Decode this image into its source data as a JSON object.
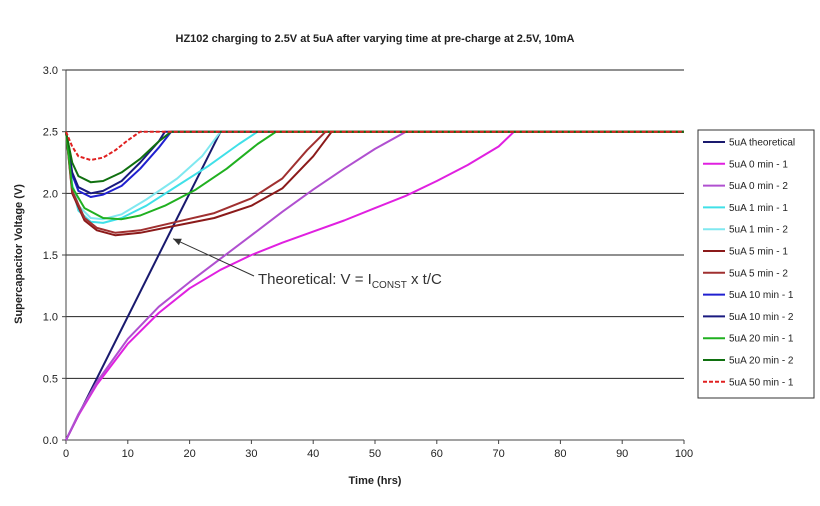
{
  "chart_data": {
    "type": "line",
    "title": "HZ102 charging to 2.5V at 5uA after varying time at pre-charge at 2.5V, 10mA",
    "xlabel": "Time (hrs)",
    "ylabel": "Supercapacitor Voltage (V)",
    "xlim": [
      0,
      100
    ],
    "ylim": [
      0,
      3.0
    ],
    "xticks": [
      "0",
      "10",
      "20",
      "30",
      "40",
      "50",
      "60",
      "70",
      "80",
      "90",
      "100"
    ],
    "yticks": [
      "0.0",
      "0.5",
      "1.0",
      "1.5",
      "2.0",
      "2.5",
      "3.0"
    ],
    "grid": "horizontal",
    "legend_position": "right",
    "annotation": {
      "text_prefix": "Theoretical: V = I",
      "text_sub": "CONST",
      "text_suffix": " x t/C",
      "arrow_target": [
        17,
        1.6
      ]
    },
    "series": [
      {
        "name": "5uA theoretical",
        "color": "#1a1a6e",
        "dash": "",
        "points": [
          [
            0,
            0
          ],
          [
            4.5,
            0.45
          ],
          [
            9,
            0.9
          ],
          [
            13.5,
            1.35
          ],
          [
            18,
            1.8
          ],
          [
            22,
            2.2
          ],
          [
            25,
            2.5
          ]
        ]
      },
      {
        "name": "5uA 0 min - 1",
        "color": "#e020e0",
        "dash": "",
        "points": [
          [
            0,
            0
          ],
          [
            2,
            0.2
          ],
          [
            5,
            0.45
          ],
          [
            10,
            0.78
          ],
          [
            15,
            1.03
          ],
          [
            20,
            1.23
          ],
          [
            25,
            1.38
          ],
          [
            30,
            1.5
          ],
          [
            35,
            1.6
          ],
          [
            40,
            1.69
          ],
          [
            45,
            1.78
          ],
          [
            50,
            1.88
          ],
          [
            55,
            1.98
          ],
          [
            60,
            2.1
          ],
          [
            65,
            2.23
          ],
          [
            70,
            2.38
          ],
          [
            72.5,
            2.5
          ],
          [
            100,
            2.5
          ]
        ]
      },
      {
        "name": "5uA 0 min - 2",
        "color": "#b050d0",
        "dash": "",
        "points": [
          [
            0,
            0
          ],
          [
            2,
            0.21
          ],
          [
            5,
            0.47
          ],
          [
            10,
            0.82
          ],
          [
            15,
            1.08
          ],
          [
            20,
            1.28
          ],
          [
            25,
            1.47
          ],
          [
            30,
            1.66
          ],
          [
            35,
            1.85
          ],
          [
            40,
            2.03
          ],
          [
            45,
            2.2
          ],
          [
            50,
            2.36
          ],
          [
            55,
            2.5
          ],
          [
            100,
            2.5
          ]
        ]
      },
      {
        "name": "5uA 1 min - 1",
        "color": "#40e0e8",
        "dash": "",
        "points": [
          [
            0,
            2.5
          ],
          [
            1,
            2.05
          ],
          [
            2,
            1.86
          ],
          [
            4,
            1.77
          ],
          [
            6,
            1.76
          ],
          [
            9,
            1.8
          ],
          [
            13,
            1.9
          ],
          [
            18,
            2.06
          ],
          [
            23,
            2.22
          ],
          [
            28,
            2.4
          ],
          [
            31,
            2.5
          ],
          [
            100,
            2.5
          ]
        ]
      },
      {
        "name": "5uA 1 min - 2",
        "color": "#80e8f0",
        "dash": "",
        "points": [
          [
            0,
            2.5
          ],
          [
            1,
            2.08
          ],
          [
            2,
            1.9
          ],
          [
            4,
            1.8
          ],
          [
            6,
            1.79
          ],
          [
            9,
            1.83
          ],
          [
            13,
            1.95
          ],
          [
            18,
            2.12
          ],
          [
            22,
            2.3
          ],
          [
            25,
            2.5
          ],
          [
            100,
            2.5
          ]
        ]
      },
      {
        "name": "5uA 5 min - 1",
        "color": "#8b1a1a",
        "dash": "",
        "points": [
          [
            0,
            2.5
          ],
          [
            1,
            2.0
          ],
          [
            3,
            1.78
          ],
          [
            5,
            1.7
          ],
          [
            8,
            1.66
          ],
          [
            12,
            1.68
          ],
          [
            18,
            1.74
          ],
          [
            24,
            1.8
          ],
          [
            30,
            1.9
          ],
          [
            35,
            2.04
          ],
          [
            40,
            2.3
          ],
          [
            43,
            2.5
          ],
          [
            100,
            2.5
          ]
        ]
      },
      {
        "name": "5uA 5 min - 2",
        "color": "#a03030",
        "dash": "",
        "points": [
          [
            0,
            2.5
          ],
          [
            1,
            2.02
          ],
          [
            3,
            1.8
          ],
          [
            5,
            1.72
          ],
          [
            8,
            1.68
          ],
          [
            12,
            1.7
          ],
          [
            18,
            1.77
          ],
          [
            24,
            1.84
          ],
          [
            30,
            1.96
          ],
          [
            35,
            2.12
          ],
          [
            39,
            2.35
          ],
          [
            42,
            2.5
          ],
          [
            100,
            2.5
          ]
        ]
      },
      {
        "name": "5uA 10 min - 1",
        "color": "#2020d0",
        "dash": "",
        "points": [
          [
            0,
            2.5
          ],
          [
            1,
            2.15
          ],
          [
            2,
            2.02
          ],
          [
            4,
            1.97
          ],
          [
            6,
            1.99
          ],
          [
            9,
            2.06
          ],
          [
            12,
            2.2
          ],
          [
            15,
            2.37
          ],
          [
            17,
            2.5
          ],
          [
            100,
            2.5
          ]
        ]
      },
      {
        "name": "5uA 10 min - 2",
        "color": "#1a1a80",
        "dash": "",
        "points": [
          [
            0,
            2.5
          ],
          [
            1,
            2.17
          ],
          [
            2,
            2.05
          ],
          [
            4,
            2.0
          ],
          [
            6,
            2.02
          ],
          [
            9,
            2.1
          ],
          [
            12,
            2.25
          ],
          [
            15,
            2.42
          ],
          [
            16,
            2.5
          ],
          [
            100,
            2.5
          ]
        ]
      },
      {
        "name": "5uA 20 min - 1",
        "color": "#20b020",
        "dash": "",
        "points": [
          [
            0,
            2.5
          ],
          [
            1,
            2.05
          ],
          [
            3,
            1.88
          ],
          [
            6,
            1.8
          ],
          [
            9,
            1.79
          ],
          [
            12,
            1.82
          ],
          [
            16,
            1.9
          ],
          [
            21,
            2.03
          ],
          [
            26,
            2.2
          ],
          [
            31,
            2.4
          ],
          [
            34,
            2.5
          ],
          [
            100,
            2.5
          ]
        ]
      },
      {
        "name": "5uA 20 min - 2",
        "color": "#107010",
        "dash": "",
        "points": [
          [
            0,
            2.5
          ],
          [
            1,
            2.25
          ],
          [
            2,
            2.14
          ],
          [
            4,
            2.09
          ],
          [
            6,
            2.1
          ],
          [
            9,
            2.17
          ],
          [
            12,
            2.28
          ],
          [
            15,
            2.42
          ],
          [
            17,
            2.5
          ],
          [
            100,
            2.5
          ]
        ]
      },
      {
        "name": "5uA 50 min - 1",
        "color": "#e02020",
        "dash": "4,2",
        "points": [
          [
            0,
            2.5
          ],
          [
            1,
            2.38
          ],
          [
            2,
            2.3
          ],
          [
            4,
            2.27
          ],
          [
            6,
            2.29
          ],
          [
            8,
            2.35
          ],
          [
            10,
            2.43
          ],
          [
            12,
            2.5
          ],
          [
            100,
            2.5
          ]
        ]
      }
    ]
  }
}
